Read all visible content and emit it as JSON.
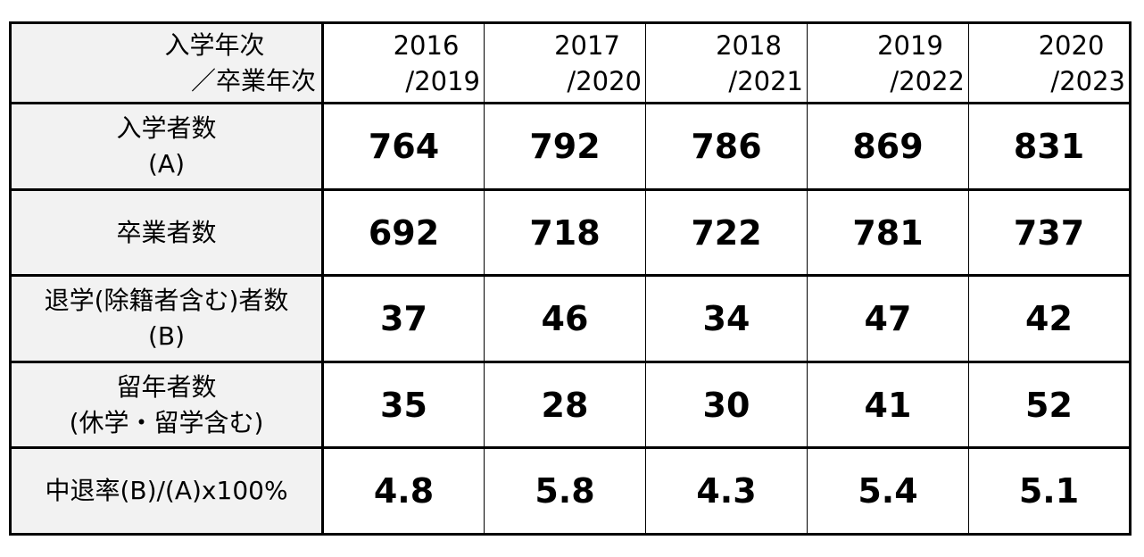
{
  "header": {
    "label_line1": "入学年次",
    "label_line2": "／卒業年次",
    "years": [
      {
        "entry": "2016",
        "grad": "/2019"
      },
      {
        "entry": "2017",
        "grad": "/2020"
      },
      {
        "entry": "2018",
        "grad": "/2021"
      },
      {
        "entry": "2019",
        "grad": "/2022"
      },
      {
        "entry": "2020",
        "grad": "/2023"
      }
    ]
  },
  "rows": [
    {
      "label_line1": "入学者数",
      "label_line2": "(A)",
      "values": [
        "764",
        "792",
        "786",
        "869",
        "831"
      ]
    },
    {
      "label_line1": "卒業者数",
      "label_line2": "",
      "values": [
        "692",
        "718",
        "722",
        "781",
        "737"
      ]
    },
    {
      "label_line1": "退学(除籍者含む)者数",
      "label_line2": "(B)",
      "values": [
        "37",
        "46",
        "34",
        "47",
        "42"
      ]
    },
    {
      "label_line1": "留年者数",
      "label_line2": "(休学・留学含む)",
      "values": [
        "35",
        "28",
        "30",
        "41",
        "52"
      ]
    },
    {
      "label_line1": "中退率(B)/(A)x100%",
      "label_line2": "",
      "values": [
        "4.8",
        "5.8",
        "4.3",
        "5.4",
        "5.1"
      ]
    }
  ]
}
